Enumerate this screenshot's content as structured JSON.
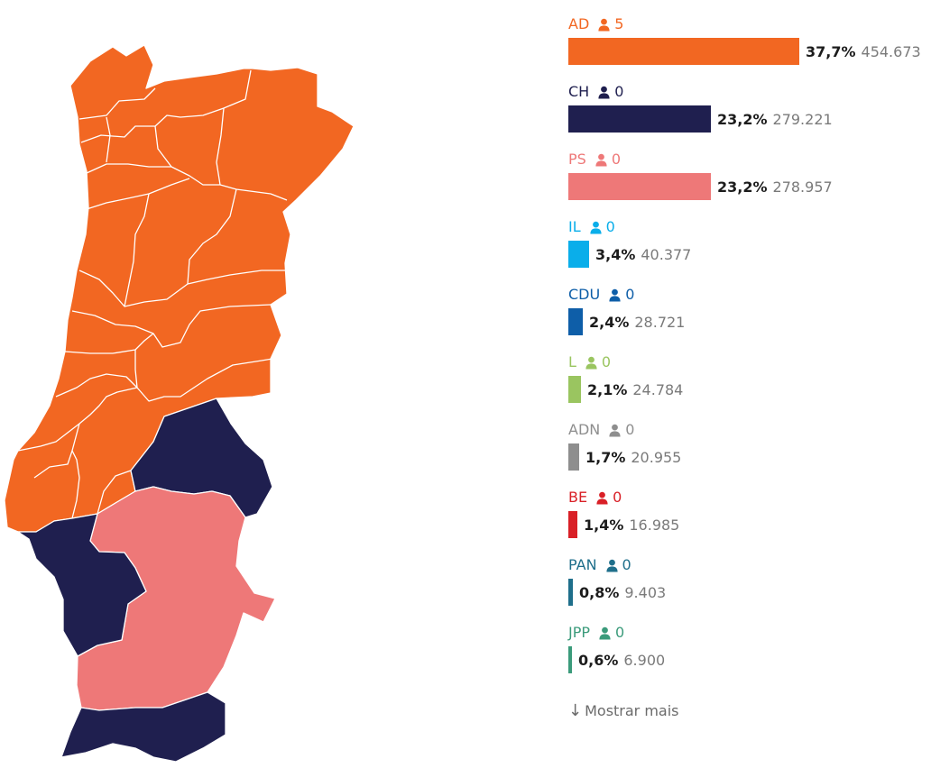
{
  "chart_data": {
    "type": "bar",
    "orientation": "horizontal",
    "parties": [
      {
        "name": "AD",
        "seats": "5",
        "percent": "37,7%",
        "votes": "454.673",
        "value": 37.7,
        "color": "#f26722"
      },
      {
        "name": "CH",
        "seats": "0",
        "percent": "23,2%",
        "votes": "279.221",
        "value": 23.2,
        "color": "#1f1f4f"
      },
      {
        "name": "PS",
        "seats": "0",
        "percent": "23,2%",
        "votes": "278.957",
        "value": 23.2,
        "color": "#ee7878"
      },
      {
        "name": "IL",
        "seats": "0",
        "percent": "3,4%",
        "votes": "40.377",
        "value": 3.4,
        "color": "#0aaeea"
      },
      {
        "name": "CDU",
        "seats": "0",
        "percent": "2,4%",
        "votes": "28.721",
        "value": 2.4,
        "color": "#0e5ea8"
      },
      {
        "name": "L",
        "seats": "0",
        "percent": "2,1%",
        "votes": "24.784",
        "value": 2.1,
        "color": "#9ac560"
      },
      {
        "name": "ADN",
        "seats": "0",
        "percent": "1,7%",
        "votes": "20.955",
        "value": 1.7,
        "color": "#8e8e8e"
      },
      {
        "name": "BE",
        "seats": "0",
        "percent": "1,4%",
        "votes": "16.985",
        "value": 1.4,
        "color": "#d92027"
      },
      {
        "name": "PAN",
        "seats": "0",
        "percent": "0,8%",
        "votes": "9.403",
        "value": 0.8,
        "color": "#1f6f8b"
      },
      {
        "name": "JPP",
        "seats": "0",
        "percent": "0,6%",
        "votes": "6.900",
        "value": 0.6,
        "color": "#3b9b7b"
      }
    ]
  },
  "map": {
    "regions": [
      {
        "name": "north",
        "winner": "AD",
        "color": "#f26722"
      },
      {
        "name": "south-east",
        "winner": "CH",
        "color": "#1f1f4f"
      },
      {
        "name": "south-center",
        "winner": "PS",
        "color": "#ee7878"
      }
    ]
  },
  "show_more_label": "Mostrar mais",
  "show_more_arrow": "↓"
}
